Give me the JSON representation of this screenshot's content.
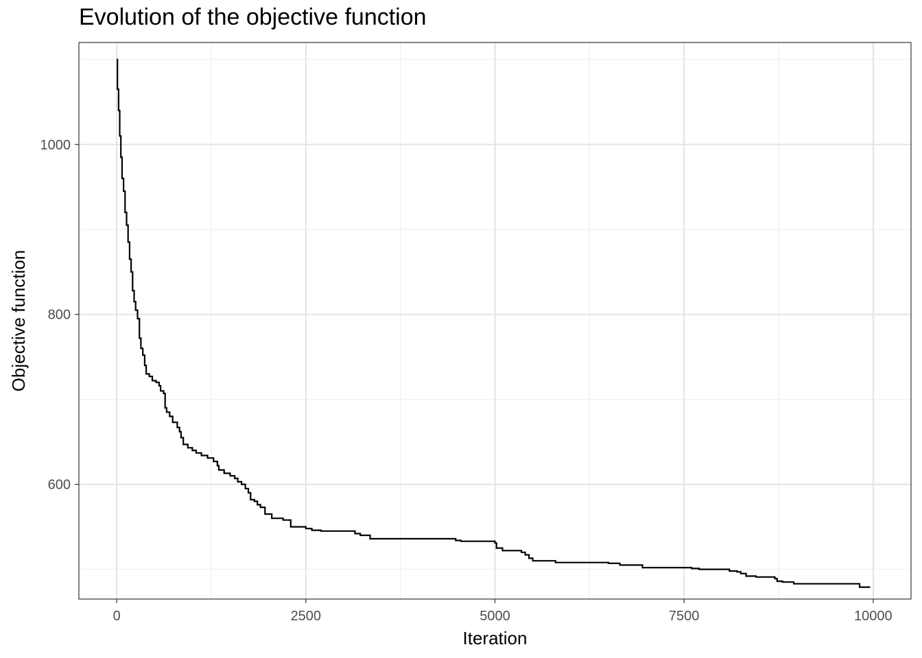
{
  "chart_data": {
    "type": "line",
    "title": "Evolution of the objective function",
    "xlabel": "Iteration",
    "ylabel": "Objective function",
    "xlim": [
      -500,
      10500
    ],
    "ylim": [
      465,
      1120
    ],
    "x_ticks": [
      0,
      2500,
      5000,
      7500,
      10000
    ],
    "y_ticks": [
      600,
      800,
      1000
    ],
    "grid": true,
    "step": true,
    "series": [
      {
        "color": "#000000",
        "points": [
          [
            0,
            1100
          ],
          [
            10,
            1065
          ],
          [
            25,
            1040
          ],
          [
            40,
            1010
          ],
          [
            55,
            985
          ],
          [
            70,
            960
          ],
          [
            90,
            945
          ],
          [
            110,
            920
          ],
          [
            130,
            905
          ],
          [
            150,
            885
          ],
          [
            170,
            865
          ],
          [
            190,
            850
          ],
          [
            210,
            828
          ],
          [
            230,
            815
          ],
          [
            250,
            805
          ],
          [
            275,
            795
          ],
          [
            300,
            772
          ],
          [
            320,
            760
          ],
          [
            345,
            752
          ],
          [
            370,
            740
          ],
          [
            390,
            730
          ],
          [
            430,
            727
          ],
          [
            470,
            722
          ],
          [
            520,
            720
          ],
          [
            560,
            716
          ],
          [
            580,
            710
          ],
          [
            620,
            707
          ],
          [
            640,
            690
          ],
          [
            660,
            685
          ],
          [
            700,
            680
          ],
          [
            740,
            673
          ],
          [
            800,
            667
          ],
          [
            830,
            662
          ],
          [
            850,
            655
          ],
          [
            880,
            647
          ],
          [
            940,
            643
          ],
          [
            1000,
            640
          ],
          [
            1050,
            637
          ],
          [
            1120,
            634
          ],
          [
            1200,
            631
          ],
          [
            1280,
            627
          ],
          [
            1330,
            622
          ],
          [
            1350,
            617
          ],
          [
            1420,
            613
          ],
          [
            1500,
            610
          ],
          [
            1560,
            607
          ],
          [
            1600,
            603
          ],
          [
            1650,
            600
          ],
          [
            1700,
            595
          ],
          [
            1740,
            590
          ],
          [
            1770,
            582
          ],
          [
            1820,
            580
          ],
          [
            1860,
            576
          ],
          [
            1900,
            573
          ],
          [
            1960,
            565
          ],
          [
            2050,
            560
          ],
          [
            2200,
            558
          ],
          [
            2300,
            550
          ],
          [
            2500,
            548
          ],
          [
            2580,
            546
          ],
          [
            2700,
            545
          ],
          [
            3000,
            545
          ],
          [
            3150,
            542
          ],
          [
            3220,
            540
          ],
          [
            3350,
            536
          ],
          [
            3600,
            536
          ],
          [
            4000,
            536
          ],
          [
            4450,
            536
          ],
          [
            4480,
            534
          ],
          [
            4550,
            533
          ],
          [
            4800,
            533
          ],
          [
            5000,
            531
          ],
          [
            5020,
            525
          ],
          [
            5100,
            522
          ],
          [
            5200,
            522
          ],
          [
            5350,
            520
          ],
          [
            5400,
            517
          ],
          [
            5450,
            513
          ],
          [
            5500,
            510
          ],
          [
            5600,
            510
          ],
          [
            5800,
            508
          ],
          [
            6000,
            508
          ],
          [
            6300,
            508
          ],
          [
            6500,
            507
          ],
          [
            6650,
            505
          ],
          [
            6900,
            505
          ],
          [
            6950,
            502
          ],
          [
            7200,
            502
          ],
          [
            7500,
            502
          ],
          [
            7600,
            501
          ],
          [
            7700,
            500
          ],
          [
            8050,
            500
          ],
          [
            8100,
            498
          ],
          [
            8200,
            497
          ],
          [
            8250,
            495
          ],
          [
            8320,
            492
          ],
          [
            8450,
            491
          ],
          [
            8700,
            489
          ],
          [
            8730,
            486
          ],
          [
            8800,
            485
          ],
          [
            8950,
            483
          ],
          [
            9500,
            483
          ],
          [
            9800,
            483
          ],
          [
            9820,
            479
          ],
          [
            9960,
            479
          ]
        ]
      }
    ]
  }
}
